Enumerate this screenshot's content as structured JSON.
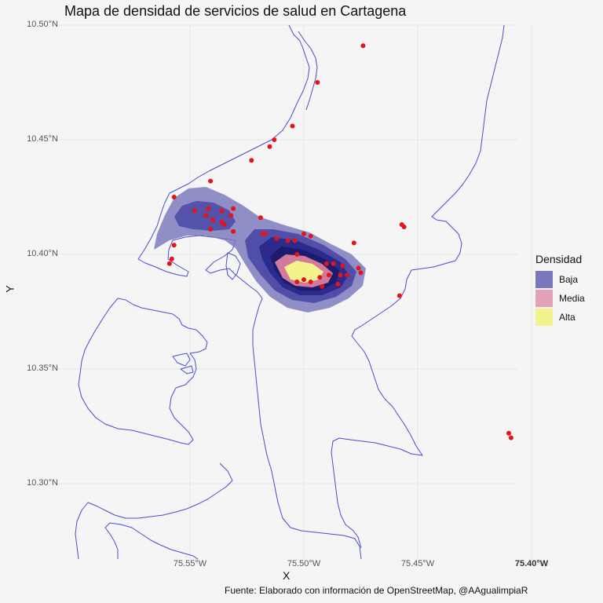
{
  "title": "Mapa de densidad de servicios de salud en Cartagena",
  "caption": "Fuente: Elaborado con información de OpenStreetMap, @AAgualimpiaR",
  "x_axis_label": "X",
  "y_axis_label": "Y",
  "y_ticks": [
    "10.50°N",
    "10.45°N",
    "10.40°N",
    "10.35°N",
    "10.30°N"
  ],
  "x_ticks": [
    "75.55°W",
    "75.50°W",
    "75.45°W",
    "75.40°W"
  ],
  "legend": {
    "title": "Densidad",
    "items": [
      {
        "label": "Baja",
        "color": "#7a78bd"
      },
      {
        "label": "Media",
        "color": "#e3a1b8"
      },
      {
        "label": "Alta",
        "color": "#f3f38d"
      }
    ]
  },
  "colors": {
    "coastline": "#4b4bcf",
    "points": "#e3141b",
    "density_low": "#7a78bd",
    "density_mid1": "#4e4ba5",
    "density_mid2": "#2c2a8c",
    "density_mid3": "#1d1b6e",
    "density_pink": "#d27a9c",
    "density_high": "#f3f38d",
    "grid": "#e6e6e6"
  },
  "map_data": {
    "type": "map-density",
    "lon_range": [
      -75.6,
      -75.39
    ],
    "lat_range": [
      10.27,
      10.5
    ],
    "points": [
      [
        -75.474,
        10.491
      ],
      [
        -75.494,
        10.475
      ],
      [
        -75.505,
        10.456
      ],
      [
        -75.513,
        10.45
      ],
      [
        -75.515,
        10.447
      ],
      [
        -75.523,
        10.441
      ],
      [
        -75.541,
        10.432
      ],
      [
        -75.557,
        10.425
      ],
      [
        -75.457,
        10.413
      ],
      [
        -75.456,
        10.412
      ],
      [
        -75.478,
        10.405
      ],
      [
        -75.548,
        10.419
      ],
      [
        -75.542,
        10.42
      ],
      [
        -75.536,
        10.419
      ],
      [
        -75.531,
        10.42
      ],
      [
        -75.532,
        10.417
      ],
      [
        -75.54,
        10.415
      ],
      [
        -75.536,
        10.414
      ],
      [
        -75.535,
        10.413
      ],
      [
        -75.531,
        10.41
      ],
      [
        -75.541,
        10.411
      ],
      [
        -75.543,
        10.417
      ],
      [
        -75.519,
        10.416
      ],
      [
        -75.518,
        10.409
      ],
      [
        -75.517,
        10.409
      ],
      [
        -75.512,
        10.407
      ],
      [
        -75.507,
        10.406
      ],
      [
        -75.504,
        10.406
      ],
      [
        -75.5,
        10.409
      ],
      [
        -75.497,
        10.408
      ],
      [
        -75.557,
        10.404
      ],
      [
        -75.558,
        10.398
      ],
      [
        -75.559,
        10.396
      ],
      [
        -75.503,
        10.4
      ],
      [
        -75.49,
        10.396
      ],
      [
        -75.487,
        10.396
      ],
      [
        -75.483,
        10.395
      ],
      [
        -75.476,
        10.394
      ],
      [
        -75.493,
        10.39
      ],
      [
        -75.489,
        10.391
      ],
      [
        -75.484,
        10.391
      ],
      [
        -75.481,
        10.391
      ],
      [
        -75.5,
        10.389
      ],
      [
        -75.503,
        10.388
      ],
      [
        -75.497,
        10.388
      ],
      [
        -75.485,
        10.387
      ],
      [
        -75.492,
        10.386
      ],
      [
        -75.475,
        10.392
      ],
      [
        -75.458,
        10.382
      ],
      [
        -75.41,
        10.322
      ],
      [
        -75.409,
        10.32
      ]
    ]
  }
}
